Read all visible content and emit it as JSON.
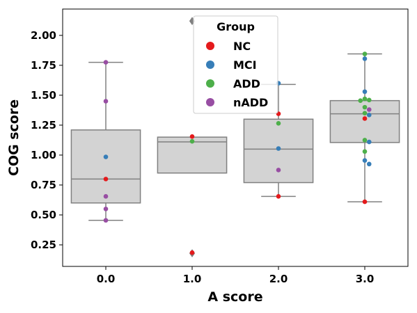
{
  "chart_data": {
    "type": "box",
    "xlabel": "A score",
    "ylabel": "COG score",
    "categories": [
      "0.0",
      "1.0",
      "2.0",
      "3.0"
    ],
    "ylim": [
      0.07,
      2.22
    ],
    "yticks": [
      0.25,
      0.5,
      0.75,
      1.0,
      1.25,
      1.5,
      1.75,
      2.0
    ],
    "ytick_labels": [
      "0.25",
      "0.50",
      "0.75",
      "1.00",
      "1.25",
      "1.50",
      "1.75",
      "2.00"
    ],
    "grid": false,
    "box_color": "#d3d3d3",
    "line_color": "#808080",
    "boxes": [
      {
        "category": "0.0",
        "q1": 0.6,
        "median": 0.8,
        "q3": 1.21,
        "whisker_low": 0.455,
        "whisker_high": 1.775,
        "outliers": []
      },
      {
        "category": "1.0",
        "q1": 0.85,
        "median": 1.11,
        "q3": 1.15,
        "whisker_low": null,
        "whisker_high": null,
        "outliers": [
          0.18,
          2.12
        ]
      },
      {
        "category": "2.0",
        "q1": 0.77,
        "median": 1.05,
        "q3": 1.3,
        "whisker_low": 0.655,
        "whisker_high": 1.59,
        "outliers": []
      },
      {
        "category": "3.0",
        "q1": 1.105,
        "median": 1.345,
        "q3": 1.455,
        "whisker_low": 0.61,
        "whisker_high": 1.845,
        "outliers": []
      }
    ],
    "legend": {
      "title": "Group",
      "position": "top-center",
      "entries": [
        {
          "label": "NC",
          "color": "#e41a1c"
        },
        {
          "label": "MCI",
          "color": "#377eb8"
        },
        {
          "label": "ADD",
          "color": "#4daf4a"
        },
        {
          "label": "nADD",
          "color": "#984ea3"
        }
      ]
    },
    "points": [
      {
        "x": "0.0",
        "group": "nADD",
        "y": 1.775
      },
      {
        "x": "0.0",
        "group": "nADD",
        "y": 1.45
      },
      {
        "x": "0.0",
        "group": "MCI",
        "y": 0.985
      },
      {
        "x": "0.0",
        "group": "NC",
        "y": 0.8
      },
      {
        "x": "0.0",
        "group": "nADD",
        "y": 0.655
      },
      {
        "x": "0.0",
        "group": "nADD",
        "y": 0.55
      },
      {
        "x": "0.0",
        "group": "nADD",
        "y": 0.455
      },
      {
        "x": "1.0",
        "group": "NC",
        "y": 1.155
      },
      {
        "x": "1.0",
        "group": "ADD",
        "y": 1.115
      },
      {
        "x": "1.0",
        "group": "NC",
        "y": 0.185
      },
      {
        "x": "2.0",
        "group": "MCI",
        "y": 1.6
      },
      {
        "x": "2.0",
        "group": "NC",
        "y": 1.345
      },
      {
        "x": "2.0",
        "group": "ADD",
        "y": 1.265
      },
      {
        "x": "2.0",
        "group": "MCI",
        "y": 1.055
      },
      {
        "x": "2.0",
        "group": "nADD",
        "y": 0.875
      },
      {
        "x": "2.0",
        "group": "NC",
        "y": 0.655
      },
      {
        "x": "3.0",
        "group": "ADD",
        "y": 1.845
      },
      {
        "x": "3.0",
        "group": "MCI",
        "y": 1.805
      },
      {
        "x": "3.0",
        "group": "MCI",
        "y": 1.53
      },
      {
        "x": "3.0",
        "group": "ADD",
        "y": 1.47
      },
      {
        "x": "3.0",
        "group": "ADD",
        "y": 1.46
      },
      {
        "x": "3.0",
        "group": "ADD",
        "y": 1.455
      },
      {
        "x": "3.0",
        "group": "ADD",
        "y": 1.4
      },
      {
        "x": "3.0",
        "group": "nADD",
        "y": 1.38
      },
      {
        "x": "3.0",
        "group": "ADD",
        "y": 1.35
      },
      {
        "x": "3.0",
        "group": "MCI",
        "y": 1.335
      },
      {
        "x": "3.0",
        "group": "NC",
        "y": 1.305
      },
      {
        "x": "3.0",
        "group": "ADD",
        "y": 1.125
      },
      {
        "x": "3.0",
        "group": "MCI",
        "y": 1.11
      },
      {
        "x": "3.0",
        "group": "ADD",
        "y": 1.03
      },
      {
        "x": "3.0",
        "group": "MCI",
        "y": 0.955
      },
      {
        "x": "3.0",
        "group": "MCI",
        "y": 0.925
      },
      {
        "x": "3.0",
        "group": "NC",
        "y": 0.61
      }
    ]
  }
}
